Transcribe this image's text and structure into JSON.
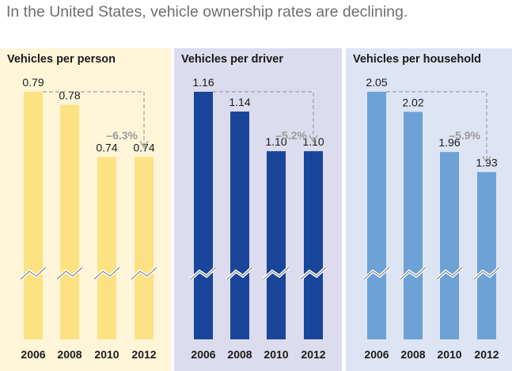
{
  "title": "In the United States, vehicle ownership rates are declining.",
  "colors": {
    "bar_person": "#fde283",
    "bar_driver": "#19469a",
    "bar_household": "#6da2d6",
    "connector": "#a0a0a0",
    "change_label": "#9b9b9b"
  },
  "chart_data": [
    {
      "type": "bar",
      "title": "Vehicles per person",
      "categories": [
        "2006",
        "2008",
        "2010",
        "2012"
      ],
      "values": [
        0.79,
        0.78,
        0.74,
        0.74
      ],
      "value_labels": [
        "0.79",
        "0.78",
        "0.74",
        "0.74"
      ],
      "change_label": "–6.3%",
      "axis_break": true,
      "ylim": [
        0.6,
        0.79
      ],
      "xlabel": "",
      "ylabel": ""
    },
    {
      "type": "bar",
      "title": "Vehicles per driver",
      "categories": [
        "2006",
        "2008",
        "2010",
        "2012"
      ],
      "values": [
        1.16,
        1.14,
        1.1,
        1.1
      ],
      "value_labels": [
        "1.16",
        "1.14",
        "1.10",
        "1.10"
      ],
      "change_label": "–5.2%",
      "axis_break": true,
      "ylim": [
        0.91,
        1.16
      ],
      "xlabel": "",
      "ylabel": ""
    },
    {
      "type": "bar",
      "title": "Vehicles per household",
      "categories": [
        "2006",
        "2008",
        "2010",
        "2012"
      ],
      "values": [
        2.05,
        2.02,
        1.96,
        1.93
      ],
      "value_labels": [
        "2.05",
        "2.02",
        "1.96",
        "1.93"
      ],
      "change_label": "–5.9%",
      "axis_break": true,
      "ylim": [
        1.68,
        2.05
      ],
      "xlabel": "",
      "ylabel": ""
    }
  ]
}
